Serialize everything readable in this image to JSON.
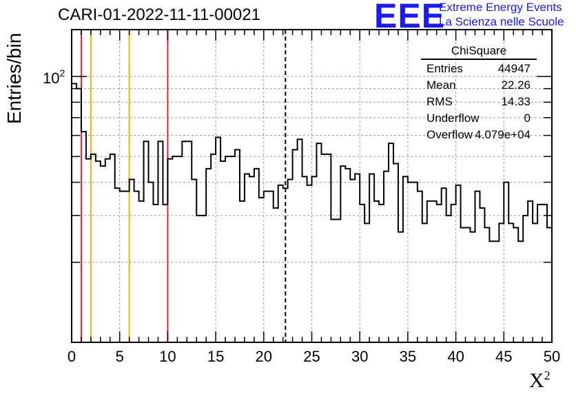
{
  "title": "CARI-01-2022-11-11-00021",
  "logo": {
    "mark": "EEE",
    "line1": "Extreme Energy Events",
    "line2": "La Scienza nelle Scuole",
    "color": "#1a1aff"
  },
  "stats": {
    "name": "ChiSquare",
    "rows": [
      {
        "label": "Entries",
        "value": "44947"
      },
      {
        "label": "Mean",
        "value": "22.26"
      },
      {
        "label": "RMS",
        "value": "14.33"
      },
      {
        "label": "Underflow",
        "value": "0"
      },
      {
        "label": "Overflow",
        "value": "4.079e+04"
      }
    ]
  },
  "chart_data": {
    "type": "histogram",
    "xlabel": "X",
    "xlabel_sup": "2",
    "ylabel": "Entries/bin",
    "xlim": [
      0,
      50
    ],
    "ylim": [
      10,
      150
    ],
    "log_y": true,
    "grid": true,
    "bin_width": 0.5,
    "x_ticks": [
      "0",
      "5",
      "10",
      "15",
      "20",
      "25",
      "30",
      "35",
      "40",
      "45",
      "50"
    ],
    "y_tick_label": "10",
    "y_tick_label_sup": "2",
    "values": [
      94,
      90,
      62,
      49,
      51,
      48,
      46,
      49,
      51,
      38,
      37,
      37,
      41,
      37,
      34,
      57,
      40,
      33,
      57,
      33,
      49,
      50,
      50,
      57,
      57,
      41,
      30,
      30,
      45,
      51,
      59,
      48,
      50,
      50,
      53,
      34,
      43,
      42,
      45,
      35,
      37,
      37,
      32,
      39,
      38,
      41,
      53,
      58,
      42,
      39,
      42,
      56,
      51,
      51,
      29,
      29,
      46,
      45,
      41,
      43,
      33,
      28,
      43,
      34,
      33,
      44,
      56,
      47,
      26,
      42,
      40,
      40,
      37,
      28,
      34,
      34,
      33,
      38,
      30,
      33,
      39,
      27,
      27,
      26,
      37,
      32,
      27,
      24,
      24,
      28,
      40,
      28,
      27,
      24,
      30,
      34,
      28,
      33,
      33,
      27
    ],
    "vlines": [
      {
        "x": 1,
        "color": "#e32636",
        "style": "solid"
      },
      {
        "x": 2,
        "color": "#f0b400",
        "style": "solid"
      },
      {
        "x": 6,
        "color": "#f0b400",
        "style": "solid"
      },
      {
        "x": 10,
        "color": "#e32636",
        "style": "solid"
      },
      {
        "x": 22.26,
        "color": "#000000",
        "style": "dashed"
      }
    ]
  }
}
